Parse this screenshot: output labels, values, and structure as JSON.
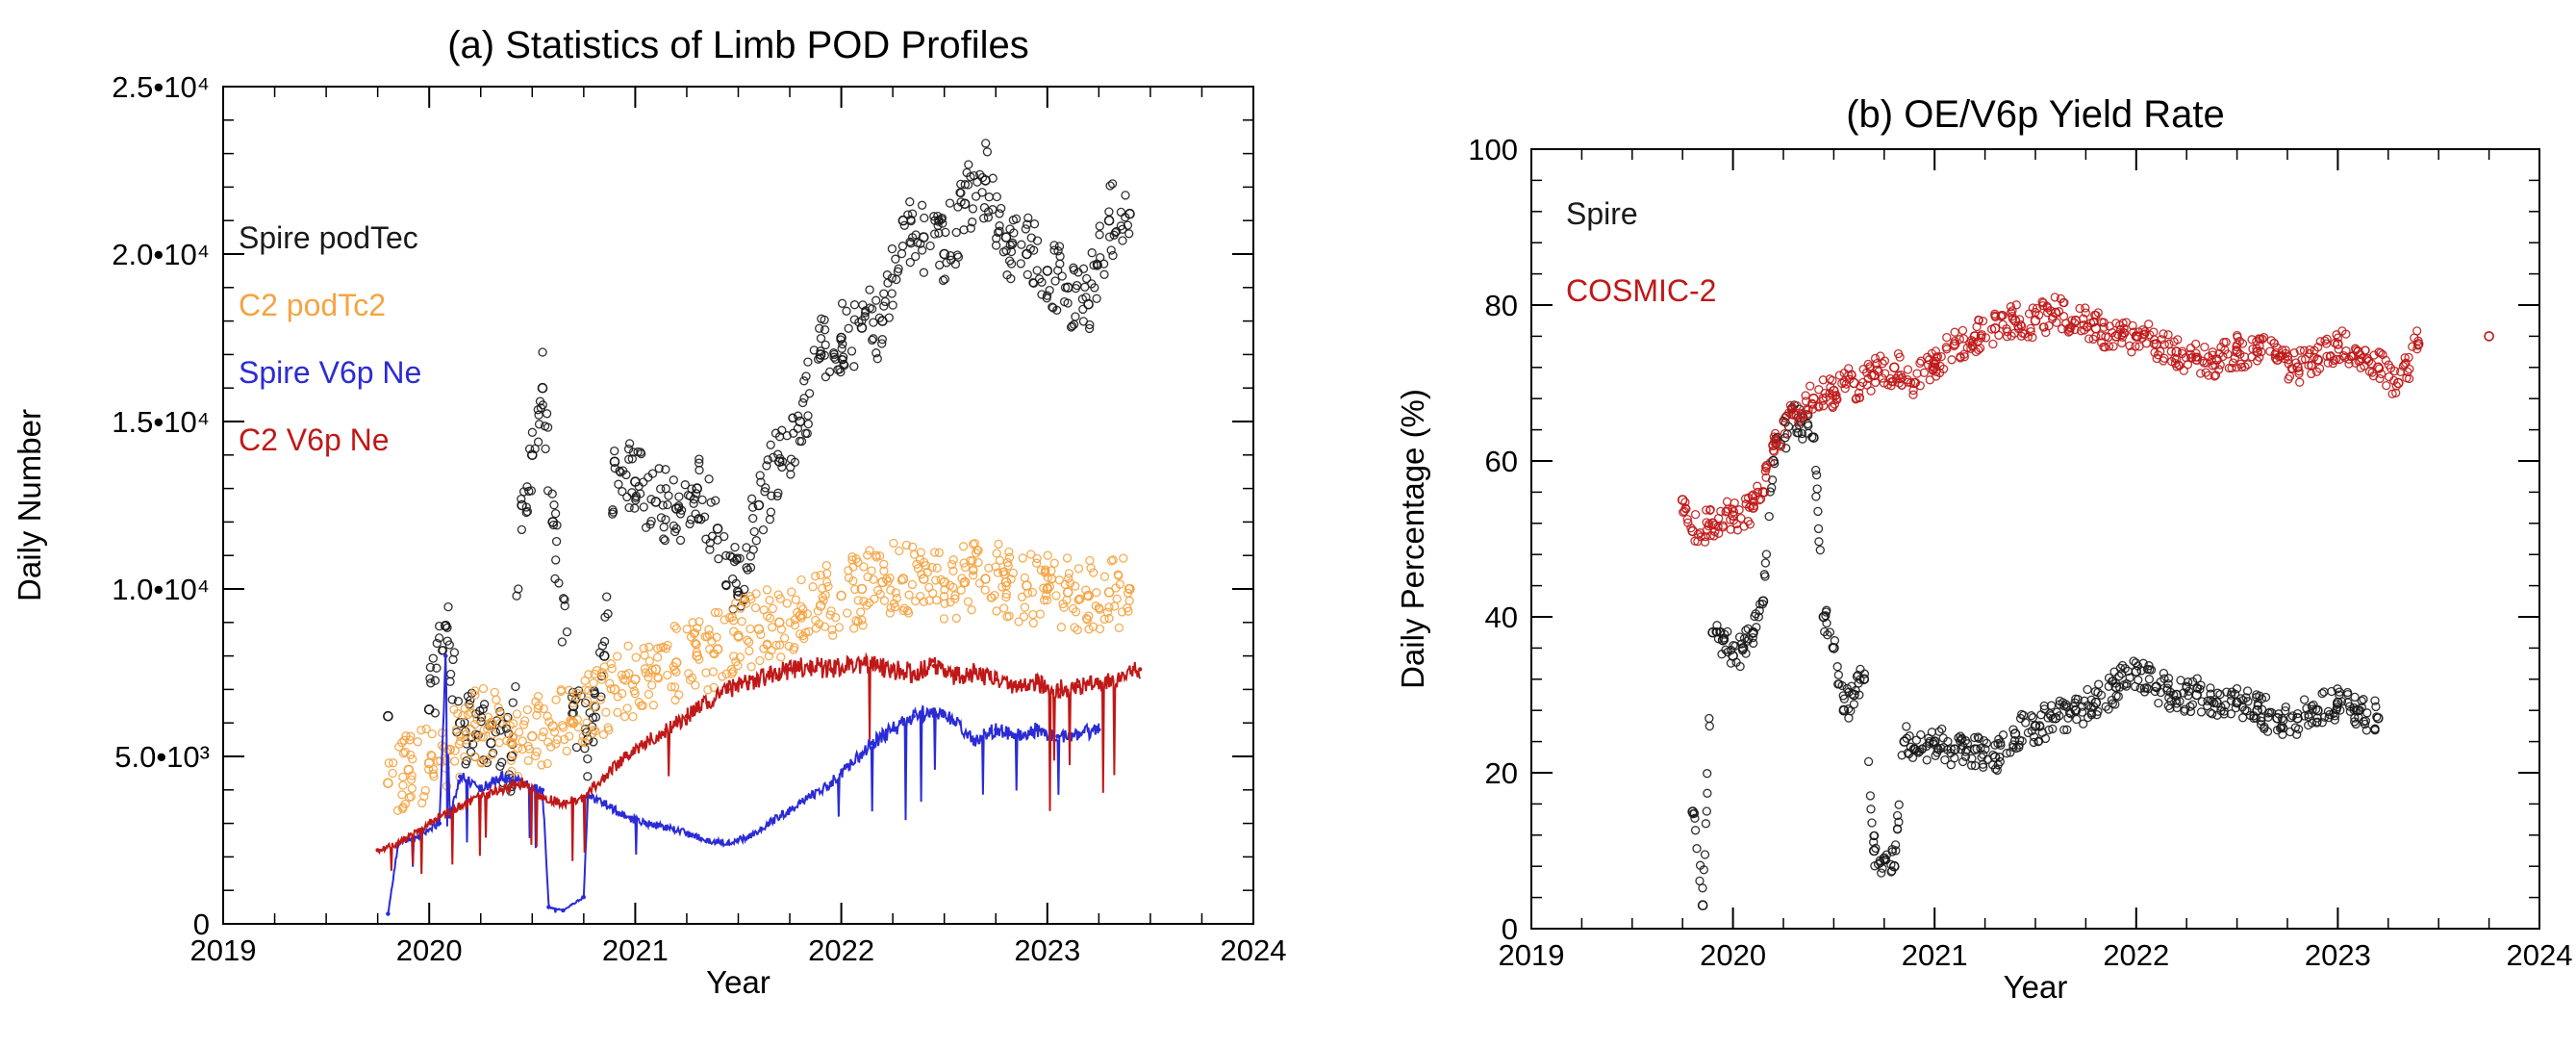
{
  "chart_data": [
    {
      "type": "scatter",
      "title": "(a) Statistics of Limb POD Profiles",
      "xlabel": "Year",
      "ylabel": "Daily Number",
      "xlim": [
        2019,
        2024
      ],
      "ylim": [
        0,
        25000
      ],
      "x_ticks": [
        "2019",
        "2020",
        "2021",
        "2022",
        "2023",
        "2024"
      ],
      "y_ticks": [
        {
          "value": 0,
          "label": "0"
        },
        {
          "value": 5000,
          "label": "5.0•10³"
        },
        {
          "value": 10000,
          "label": "1.0•10⁴"
        },
        {
          "value": 15000,
          "label": "1.5•10⁴"
        },
        {
          "value": 20000,
          "label": "2.0•10⁴"
        },
        {
          "value": 25000,
          "label": "2.5•10⁴"
        }
      ],
      "legend_position": "top-left",
      "series": [
        {
          "name": "Spire podTec",
          "style": "scatter",
          "color": "#1a1a1a",
          "x": [
            2019.8,
            2020.0,
            2020.08,
            2020.15,
            2020.3,
            2020.4,
            2020.45,
            2020.5,
            2020.55,
            2020.6,
            2020.7,
            2020.77,
            2020.85,
            2020.9,
            2021.0,
            2021.1,
            2021.2,
            2021.3,
            2021.4,
            2021.5,
            2021.6,
            2021.7,
            2021.8,
            2021.9,
            2022.0,
            2022.1,
            2022.2,
            2022.3,
            2022.4,
            2022.5,
            2022.6,
            2022.7,
            2022.8,
            2022.9,
            2023.0,
            2023.1,
            2023.2,
            2023.3,
            2023.4
          ],
          "y": [
            6200,
            6400,
            8900,
            6000,
            5400,
            5000,
            12500,
            14000,
            16000,
            12000,
            6500,
            5500,
            8000,
            13800,
            13200,
            12600,
            12400,
            13000,
            11800,
            9800,
            12500,
            13800,
            15000,
            17000,
            17500,
            17800,
            18000,
            21000,
            20500,
            20000,
            21500,
            22200,
            20500,
            20000,
            19500,
            19000,
            18500,
            21000,
            21200
          ]
        },
        {
          "name": "C2 podTc2",
          "style": "scatter",
          "color": "#f5a442",
          "x": [
            2019.8,
            2019.9,
            2020.0,
            2020.1,
            2020.2,
            2020.3,
            2020.4,
            2020.5,
            2020.6,
            2020.7,
            2020.8,
            2020.9,
            2021.0,
            2021.1,
            2021.2,
            2021.3,
            2021.4,
            2021.5,
            2021.6,
            2021.7,
            2021.8,
            2021.9,
            2022.0,
            2022.1,
            2022.2,
            2022.3,
            2022.4,
            2022.5,
            2022.6,
            2022.7,
            2022.8,
            2022.9,
            2023.0,
            2023.1,
            2023.2,
            2023.3,
            2023.4
          ],
          "y": [
            4200,
            4600,
            4800,
            5200,
            5800,
            6000,
            5400,
            5600,
            5900,
            6000,
            6500,
            7000,
            7300,
            7600,
            7800,
            8000,
            8200,
            8600,
            8800,
            9000,
            9200,
            9500,
            9800,
            10000,
            10200,
            10300,
            10300,
            10200,
            10200,
            10300,
            10200,
            10100,
            10000,
            9900,
            9800,
            9900,
            10000
          ]
        },
        {
          "name": "Spire V6p Ne",
          "style": "line",
          "color": "#2b2bd6",
          "x": [
            2019.8,
            2019.85,
            2019.95,
            2020.05,
            2020.08,
            2020.1,
            2020.15,
            2020.25,
            2020.35,
            2020.45,
            2020.55,
            2020.58,
            2020.65,
            2020.75,
            2020.77,
            2020.85,
            2020.95,
            2021.05,
            2021.15,
            2021.25,
            2021.35,
            2021.45,
            2021.55,
            2021.65,
            2021.75,
            2021.85,
            2021.95,
            2022.05,
            2022.15,
            2022.25,
            2022.35,
            2022.45,
            2022.55,
            2022.65,
            2022.75,
            2022.85,
            2022.95,
            2023.05,
            2023.15,
            2023.25
          ],
          "y": [
            300,
            2400,
            2600,
            3000,
            8000,
            3200,
            4400,
            4000,
            4400,
            4200,
            4000,
            500,
            400,
            800,
            3800,
            3600,
            3200,
            3000,
            2900,
            2700,
            2500,
            2400,
            2600,
            3000,
            3400,
            3800,
            4200,
            4800,
            5400,
            5800,
            6200,
            6400,
            6000,
            5500,
            5800,
            5600,
            5800,
            5600,
            5700,
            5800
          ]
        },
        {
          "name": "C2 V6p Ne",
          "style": "line",
          "color": "#c01818",
          "x": [
            2019.75,
            2019.85,
            2019.95,
            2020.05,
            2020.15,
            2020.25,
            2020.35,
            2020.45,
            2020.55,
            2020.65,
            2020.75,
            2020.85,
            2020.95,
            2021.05,
            2021.15,
            2021.25,
            2021.35,
            2021.45,
            2021.55,
            2021.65,
            2021.75,
            2021.85,
            2021.95,
            2022.05,
            2022.15,
            2022.25,
            2022.35,
            2022.45,
            2022.55,
            2022.65,
            2022.75,
            2022.85,
            2022.95,
            2023.05,
            2023.15,
            2023.25,
            2023.35,
            2023.45
          ],
          "y": [
            2200,
            2400,
            2800,
            3200,
            3500,
            3800,
            4000,
            4200,
            3800,
            3600,
            3800,
            4400,
            5000,
            5400,
            5800,
            6200,
            6600,
            7000,
            7200,
            7400,
            7600,
            7700,
            7600,
            7800,
            7700,
            7600,
            7500,
            7700,
            7400,
            7500,
            7300,
            7100,
            7200,
            7000,
            7100,
            7200,
            7300,
            7600
          ]
        }
      ]
    },
    {
      "type": "scatter",
      "title": "(b) OE/V6p Yield Rate",
      "xlabel": "Year",
      "ylabel": "Daily Percentage (%)",
      "xlim": [
        2019,
        2024
      ],
      "ylim": [
        0,
        100
      ],
      "x_ticks": [
        "2019",
        "2020",
        "2021",
        "2022",
        "2023",
        "2024"
      ],
      "y_ticks": [
        {
          "value": 0,
          "label": "0"
        },
        {
          "value": 20,
          "label": "20"
        },
        {
          "value": 40,
          "label": "40"
        },
        {
          "value": 60,
          "label": "60"
        },
        {
          "value": 80,
          "label": "80"
        },
        {
          "value": 100,
          "label": "100"
        }
      ],
      "legend_position": "top-left",
      "series": [
        {
          "name": "Spire",
          "style": "scatter",
          "color": "#1a1a1a",
          "x": [
            2019.8,
            2019.85,
            2019.9,
            2019.95,
            2020.0,
            2020.05,
            2020.1,
            2020.15,
            2020.2,
            2020.3,
            2020.4,
            2020.45,
            2020.5,
            2020.55,
            2020.6,
            2020.65,
            2020.7,
            2020.75,
            2020.8,
            2020.85,
            2020.9,
            2021.0,
            2021.1,
            2021.2,
            2021.3,
            2021.4,
            2021.5,
            2021.6,
            2021.7,
            2021.8,
            2021.9,
            2022.0,
            2022.1,
            2022.2,
            2022.3,
            2022.4,
            2022.5,
            2022.6,
            2022.7,
            2022.8,
            2022.9,
            2023.0,
            2023.1,
            2023.2
          ],
          "y": [
            15,
            3,
            38,
            37,
            35,
            36,
            38,
            42,
            60,
            66,
            63,
            40,
            36,
            28,
            30,
            32,
            10,
            9,
            8,
            24,
            23,
            24,
            23,
            23,
            22,
            25,
            26,
            27,
            28,
            29,
            31,
            33,
            31,
            30,
            30,
            29,
            29,
            28,
            27,
            27,
            28,
            29,
            28,
            27
          ]
        },
        {
          "name": "COSMIC-2",
          "style": "scatter",
          "color": "#c01818",
          "x": [
            2019.75,
            2019.8,
            2019.9,
            2020.0,
            2020.1,
            2020.15,
            2020.2,
            2020.3,
            2020.4,
            2020.5,
            2020.6,
            2020.7,
            2020.8,
            2020.9,
            2021.0,
            2021.1,
            2021.2,
            2021.3,
            2021.4,
            2021.5,
            2021.6,
            2021.7,
            2021.8,
            2021.9,
            2022.0,
            2022.1,
            2022.2,
            2022.3,
            2022.4,
            2022.5,
            2022.6,
            2022.7,
            2022.8,
            2022.9,
            2023.0,
            2023.1,
            2023.2,
            2023.3,
            2023.4,
            2023.75
          ],
          "y": [
            55,
            51,
            52,
            53,
            54,
            56,
            62,
            66,
            68,
            69,
            70,
            71,
            72,
            70,
            72,
            75,
            76,
            77,
            78,
            78,
            79,
            78,
            77,
            76,
            76,
            75,
            74,
            73,
            73,
            74,
            74,
            73,
            72,
            73,
            75,
            74,
            72,
            70,
            75,
            76
          ]
        }
      ]
    }
  ]
}
